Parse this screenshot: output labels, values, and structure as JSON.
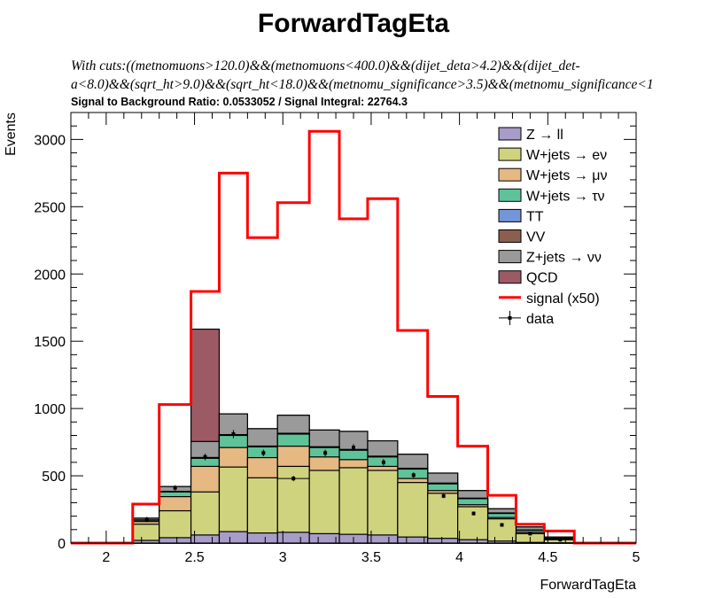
{
  "title": "ForwardTagEta",
  "cuts_line1": "With cuts:((metnomuons>120.0)&&(metnomuons<400.0)&&(dijet_deta>4.2)&&(dijet_det-",
  "cuts_line2": "a<8.0)&&(sqrt_ht>9.0)&&(sqrt_ht<18.0)&&(metnomu_significance>3.5)&&(metnomu_significance<1",
  "ratio_text": "Signal to Background Ratio: 0.0533052 / Signal Integral: 22764.3",
  "chart_data": {
    "type": "bar",
    "xlabel": "ForwardTagEta",
    "ylabel": "Events",
    "xlim": [
      1.8,
      5.0
    ],
    "ylim": [
      0,
      3200
    ],
    "xticks": [
      "2",
      "2.5",
      "3",
      "3.5",
      "4",
      "4.5",
      "5"
    ],
    "yticks": [
      "0",
      "500",
      "1000",
      "1500",
      "2000",
      "2500",
      "3000"
    ],
    "legend_position": "top-right",
    "bin_edges": [
      2.15,
      2.3,
      2.48,
      2.64,
      2.8,
      2.97,
      3.15,
      3.32,
      3.48,
      3.65,
      3.82,
      3.99,
      4.16,
      4.32,
      4.48,
      4.65
    ],
    "stack": [
      {
        "name": "Z → ll",
        "color": "#a89cc8",
        "values": [
          20,
          40,
          60,
          85,
          75,
          80,
          70,
          65,
          60,
          45,
          35,
          25,
          15,
          5,
          2
        ]
      },
      {
        "name": "W+jets → eν",
        "color": "#cfd37d",
        "values": [
          140,
          240,
          380,
          565,
          485,
          570,
          540,
          560,
          540,
          450,
          370,
          270,
          180,
          70,
          25
        ]
      },
      {
        "name": "W+jets → μν",
        "color": "#e6b882",
        "values": [
          160,
          345,
          570,
          710,
          635,
          720,
          640,
          620,
          570,
          480,
          390,
          285,
          190,
          80,
          30
        ]
      },
      {
        "name": "W+jets → τν",
        "color": "#5fc39a",
        "values": [
          170,
          380,
          630,
          800,
          715,
          810,
          710,
          690,
          640,
          550,
          440,
          330,
          220,
          95,
          35
        ]
      },
      {
        "name": "TT",
        "color": "#7495d7",
        "values": [
          171,
          382,
          633,
          803,
          718,
          813,
          713,
          693,
          643,
          553,
          443,
          332,
          222,
          96,
          36
        ]
      },
      {
        "name": "VV",
        "color": "#8a5f4f",
        "values": [
          172,
          384,
          636,
          806,
          721,
          816,
          716,
          696,
          646,
          556,
          446,
          334,
          224,
          97,
          37
        ]
      },
      {
        "name": "Z+jets → νν",
        "color": "#9a9a9a",
        "values": [
          185,
          420,
          755,
          960,
          850,
          950,
          840,
          830,
          760,
          660,
          520,
          390,
          255,
          120,
          45
        ]
      },
      {
        "name": "QCD",
        "color": "#9c5a64",
        "values": [
          185,
          420,
          1590,
          960,
          850,
          950,
          840,
          830,
          760,
          660,
          520,
          390,
          255,
          120,
          45
        ]
      }
    ],
    "signal": {
      "name": "signal (x50)",
      "color": "#ff0000",
      "values": [
        290,
        1030,
        1870,
        2750,
        2270,
        2530,
        3060,
        2410,
        2560,
        1580,
        1090,
        720,
        355,
        140,
        90
      ]
    },
    "data": {
      "name": "data",
      "points": [
        {
          "x": 2.23,
          "y": 175,
          "yerr": 20
        },
        {
          "x": 2.39,
          "y": 410,
          "yerr": 20
        },
        {
          "x": 2.56,
          "y": 640,
          "yerr": 25
        },
        {
          "x": 2.72,
          "y": 810,
          "yerr": 30
        },
        {
          "x": 2.89,
          "y": 670,
          "yerr": 25
        },
        {
          "x": 3.06,
          "y": 480,
          "yerr": 20,
          "xerr": 0.09
        },
        {
          "x": 3.24,
          "y": 670,
          "yerr": 25
        },
        {
          "x": 3.4,
          "y": 710,
          "yerr": 25
        },
        {
          "x": 3.57,
          "y": 600,
          "yerr": 25
        },
        {
          "x": 3.74,
          "y": 505,
          "yerr": 20
        },
        {
          "x": 3.91,
          "y": 350,
          "yerr": 15
        },
        {
          "x": 4.08,
          "y": 220,
          "yerr": 15
        },
        {
          "x": 4.24,
          "y": 135,
          "yerr": 10
        },
        {
          "x": 4.4,
          "y": 70,
          "yerr": 8
        },
        {
          "x": 4.57,
          "y": 25,
          "yerr": 5
        }
      ]
    }
  }
}
